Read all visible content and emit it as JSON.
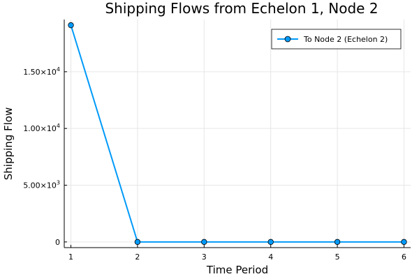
{
  "chart_data": {
    "type": "line",
    "title": "Shipping Flows from Echelon 1, Node 2",
    "xlabel": "Time Period",
    "ylabel": "Shipping Flow",
    "x": [
      1,
      2,
      3,
      4,
      5,
      6
    ],
    "series": [
      {
        "name": "To Node 2 (Echelon 2)",
        "values": [
          19100,
          0,
          0,
          0,
          0,
          0
        ],
        "color": "#009af9"
      }
    ],
    "xlim": [
      0.9,
      6.1
    ],
    "ylim": [
      -500,
      19600
    ],
    "xticks": [
      {
        "value": 1,
        "label": "1"
      },
      {
        "value": 2,
        "label": "2"
      },
      {
        "value": 3,
        "label": "3"
      },
      {
        "value": 4,
        "label": "4"
      },
      {
        "value": 5,
        "label": "5"
      },
      {
        "value": 6,
        "label": "6"
      }
    ],
    "yticks": [
      {
        "value": 0,
        "label": "0"
      },
      {
        "value": 5000,
        "label": "5.00×10",
        "exp": "3"
      },
      {
        "value": 10000,
        "label": "1.00×10",
        "exp": "4"
      },
      {
        "value": 15000,
        "label": "1.50×10",
        "exp": "4"
      }
    ],
    "grid": true,
    "legend_position": "top-right"
  }
}
